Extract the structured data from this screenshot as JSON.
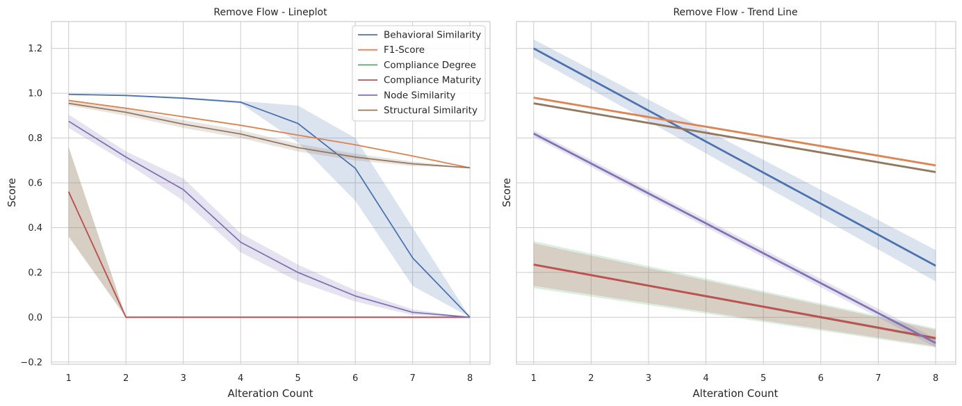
{
  "chart_data": [
    {
      "type": "line",
      "title": "Remove Flow - Lineplot",
      "xlabel": "Alteration Count",
      "ylabel": "Score",
      "xlim": [
        0.7,
        8.35
      ],
      "ylim": [
        -0.21,
        1.32
      ],
      "x_ticks": [
        "1",
        "2",
        "3",
        "4",
        "5",
        "6",
        "7",
        "8"
      ],
      "y_ticks": [
        "−0.2",
        "0.0",
        "0.2",
        "0.4",
        "0.6",
        "0.8",
        "1.0",
        "1.2"
      ],
      "grid": true,
      "legend_position": "top-right",
      "x": [
        1,
        2,
        3,
        4,
        5,
        6,
        7,
        8
      ],
      "series": [
        {
          "name": "Behavioral Similarity",
          "color": "#4c72b0",
          "values": [
            0.995,
            0.99,
            0.978,
            0.96,
            0.865,
            0.665,
            0.265,
            0.0
          ],
          "band_low": [
            0.993,
            0.987,
            0.974,
            0.955,
            0.78,
            0.52,
            0.14,
            0.0
          ],
          "band_high": [
            0.997,
            0.993,
            0.982,
            0.965,
            0.945,
            0.8,
            0.4,
            0.0
          ]
        },
        {
          "name": "F1-Score",
          "color": "#dd8452",
          "values": [
            0.968,
            0.933,
            0.895,
            0.857,
            0.813,
            0.77,
            0.72,
            0.667
          ],
          "band_low": [
            0.965,
            0.93,
            0.892,
            0.854,
            0.81,
            0.767,
            0.717,
            0.667
          ],
          "band_high": [
            0.971,
            0.936,
            0.898,
            0.86,
            0.816,
            0.773,
            0.723,
            0.667
          ]
        },
        {
          "name": "Compliance Degree",
          "color": "#55a868",
          "values": [
            0.56,
            0.0,
            0.0,
            0.0,
            0.0,
            0.0,
            0.0,
            0.0
          ],
          "band_low": [
            0.36,
            0.0,
            0.0,
            0.0,
            0.0,
            0.0,
            0.0,
            0.0
          ],
          "band_high": [
            0.76,
            0.0,
            0.0,
            0.0,
            0.0,
            0.0,
            0.0,
            0.0
          ]
        },
        {
          "name": "Compliance Maturity",
          "color": "#c44e52",
          "values": [
            0.56,
            0.0,
            0.0,
            0.0,
            0.0,
            0.0,
            0.0,
            0.0
          ],
          "band_low": [
            0.36,
            0.0,
            0.0,
            0.0,
            0.0,
            0.0,
            0.0,
            0.0
          ],
          "band_high": [
            0.76,
            0.0,
            0.0,
            0.0,
            0.0,
            0.0,
            0.0,
            0.0
          ]
        },
        {
          "name": "Node Similarity",
          "color": "#8172b3",
          "values": [
            0.875,
            0.715,
            0.57,
            0.335,
            0.2,
            0.095,
            0.022,
            0.0
          ],
          "band_low": [
            0.845,
            0.69,
            0.52,
            0.29,
            0.16,
            0.07,
            0.01,
            0.0
          ],
          "band_high": [
            0.905,
            0.74,
            0.62,
            0.375,
            0.235,
            0.12,
            0.035,
            0.0
          ]
        },
        {
          "name": "Structural Similarity",
          "color": "#937860",
          "values": [
            0.955,
            0.915,
            0.862,
            0.818,
            0.757,
            0.715,
            0.685,
            0.667
          ],
          "band_low": [
            0.945,
            0.9,
            0.845,
            0.8,
            0.74,
            0.7,
            0.675,
            0.667
          ],
          "band_high": [
            0.965,
            0.93,
            0.88,
            0.835,
            0.774,
            0.73,
            0.695,
            0.667
          ]
        }
      ]
    },
    {
      "type": "line",
      "title": "Remove Flow - Trend Line",
      "xlabel": "Alteration Count",
      "ylabel": "Score",
      "xlim": [
        0.7,
        8.35
      ],
      "ylim": [
        -0.21,
        1.32
      ],
      "x_ticks": [
        "1",
        "2",
        "3",
        "4",
        "5",
        "6",
        "7",
        "8"
      ],
      "y_ticks": [],
      "grid": true,
      "x": [
        1,
        8
      ],
      "series": [
        {
          "color": "#4c72b0",
          "values": [
            1.2,
            0.23
          ],
          "band_low": [
            1.16,
            0.16
          ],
          "band_high": [
            1.24,
            0.3
          ]
        },
        {
          "color": "#dd8452",
          "values": [
            0.98,
            0.678
          ],
          "band_low": [
            0.975,
            0.673
          ],
          "band_high": [
            0.985,
            0.683
          ]
        },
        {
          "color": "#55a868",
          "values": [
            0.235,
            -0.095
          ],
          "band_low": [
            0.13,
            -0.135
          ],
          "band_high": [
            0.34,
            -0.05
          ]
        },
        {
          "color": "#c44e52",
          "values": [
            0.235,
            -0.093
          ],
          "band_low": [
            0.14,
            -0.13
          ],
          "band_high": [
            0.33,
            -0.056
          ]
        },
        {
          "color": "#8172b3",
          "values": [
            0.82,
            -0.115
          ],
          "band_low": [
            0.805,
            -0.135
          ],
          "band_high": [
            0.835,
            -0.095
          ]
        },
        {
          "color": "#937860",
          "values": [
            0.955,
            0.648
          ],
          "band_low": [
            0.95,
            0.643
          ],
          "band_high": [
            0.96,
            0.653
          ]
        }
      ]
    }
  ]
}
